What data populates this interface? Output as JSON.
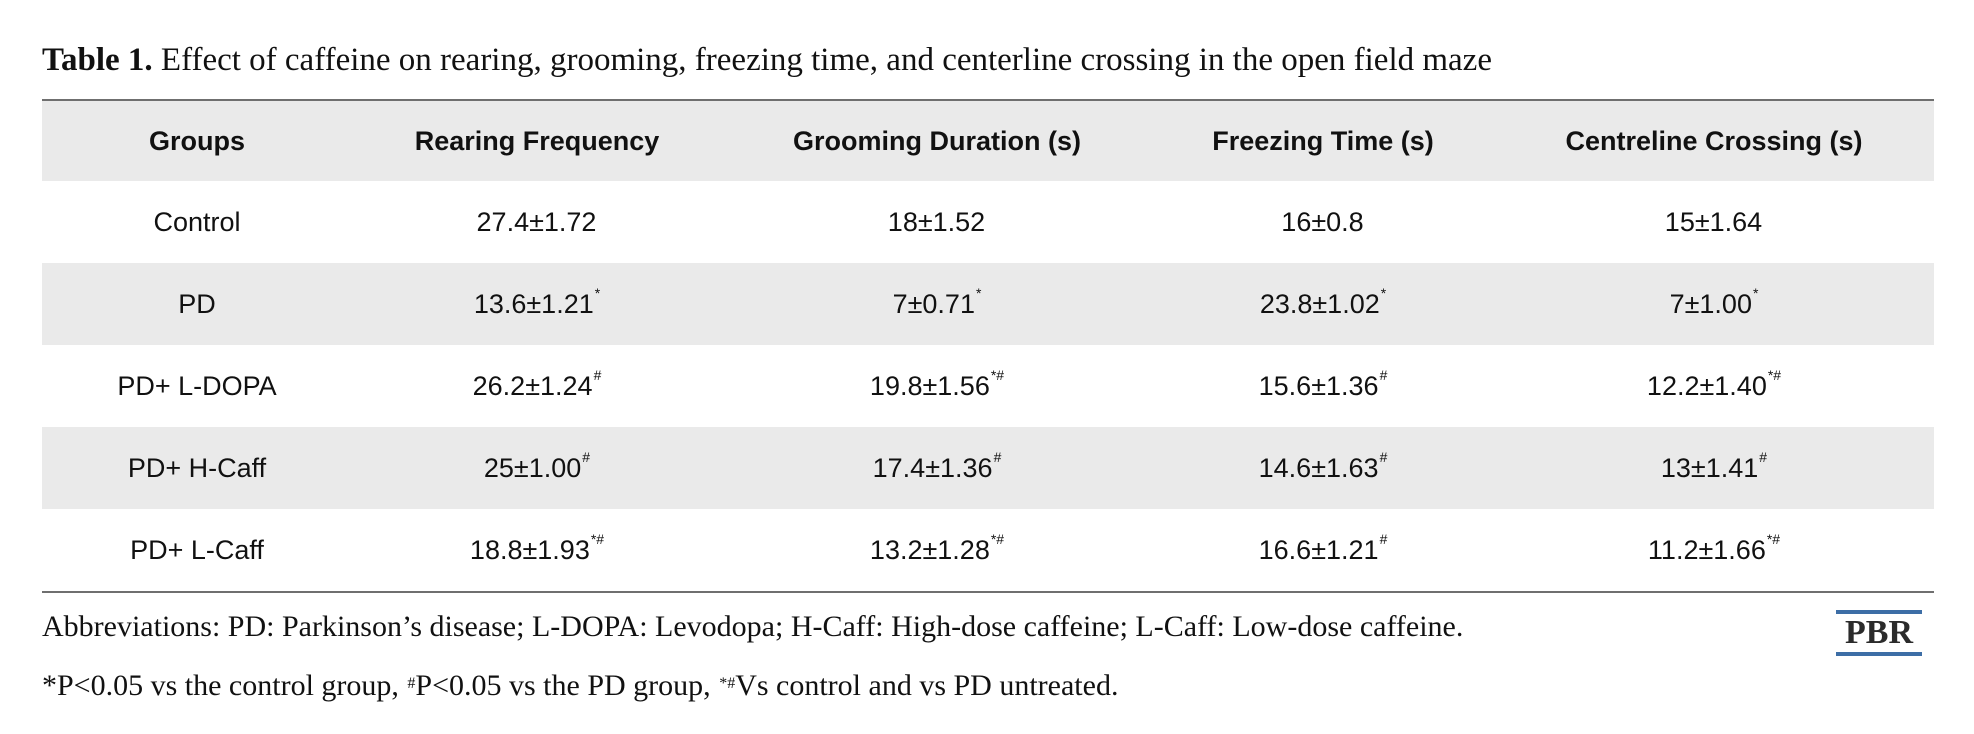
{
  "caption": {
    "label": "Table 1.",
    "text": " Effect of caffeine on rearing, grooming, freezing time, and centerline crossing in the open field maze"
  },
  "table": {
    "headers": [
      "Groups",
      "Rearing Frequency",
      "Grooming Duration (s)",
      "Freezing Time (s)",
      "Centreline Crossing (s)"
    ],
    "rows": [
      {
        "group": "Control",
        "rearing": {
          "value": "27.4±1.72",
          "sup": ""
        },
        "grooming": {
          "value": "18±1.52",
          "sup": ""
        },
        "freezing": {
          "value": "16±0.8",
          "sup": ""
        },
        "crossing": {
          "value": "15±1.64",
          "sup": ""
        }
      },
      {
        "group": "PD",
        "rearing": {
          "value": "13.6±1.21",
          "sup": "*"
        },
        "grooming": {
          "value": "7±0.71",
          "sup": "*"
        },
        "freezing": {
          "value": "23.8±1.02",
          "sup": "*"
        },
        "crossing": {
          "value": "7±1.00",
          "sup": "*"
        }
      },
      {
        "group": "PD+ L-DOPA",
        "rearing": {
          "value": "26.2±1.24",
          "sup": "#"
        },
        "grooming": {
          "value": "19.8±1.56",
          "sup": "*#"
        },
        "freezing": {
          "value": "15.6±1.36",
          "sup": "#"
        },
        "crossing": {
          "value": "12.2±1.40",
          "sup": "*#"
        }
      },
      {
        "group": "PD+ H-Caff",
        "rearing": {
          "value": "25±1.00",
          "sup": "#"
        },
        "grooming": {
          "value": "17.4±1.36",
          "sup": "#"
        },
        "freezing": {
          "value": "14.6±1.63",
          "sup": "#"
        },
        "crossing": {
          "value": "13±1.41",
          "sup": "#"
        }
      },
      {
        "group": "PD+ L-Caff",
        "rearing": {
          "value": "18.8±1.93",
          "sup": "*#"
        },
        "grooming": {
          "value": "13.2±1.28",
          "sup": "*#"
        },
        "freezing": {
          "value": "16.6±1.21",
          "sup": "#"
        },
        "crossing": {
          "value": "11.2±1.66",
          "sup": "*#"
        }
      }
    ]
  },
  "footnotes": {
    "abbreviations": "Abbreviations: PD: Parkinson’s disease; L-DOPA: Levodopa; H-Caff: High-dose caffeine; L-Caff: Low-dose caffeine.",
    "sig_part1": "*P<0.05 vs the control group, ",
    "sig_sup1": "#",
    "sig_part2": "P<0.05 vs the PD group, ",
    "sig_sup2": "*#",
    "sig_part3": "Vs control and vs PD untreated."
  },
  "logo": {
    "text": "PBR",
    "accent_color": "#3d6ea6"
  }
}
